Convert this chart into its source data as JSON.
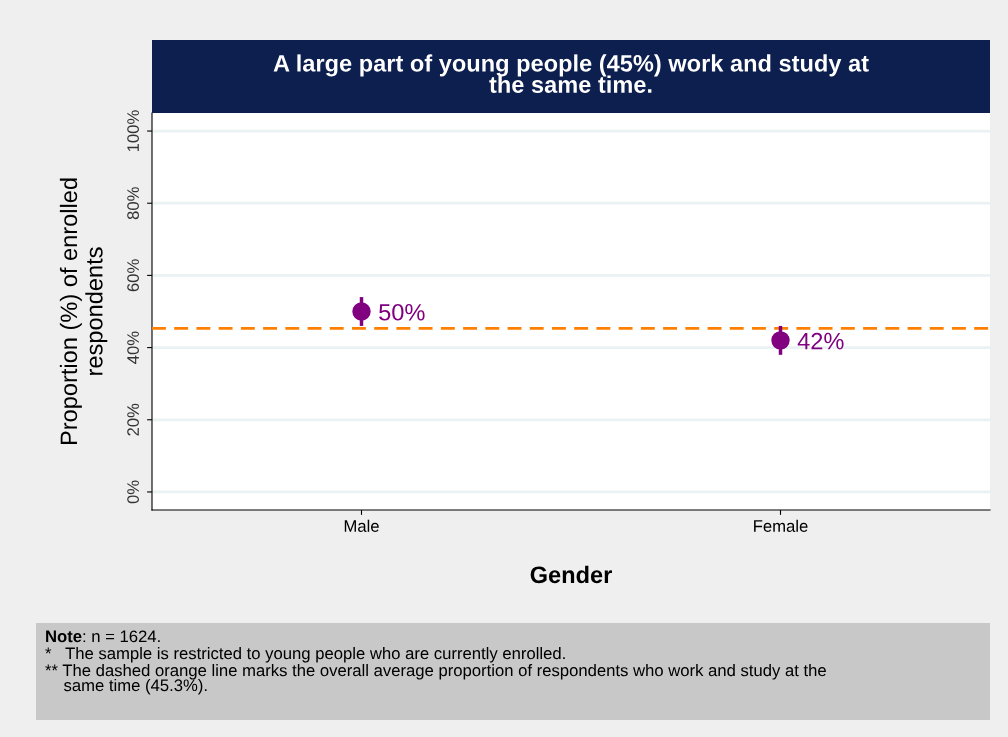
{
  "chart_data": {
    "type": "scatter",
    "title": "A large part of young people (45%) work and study at\nthe same time.",
    "xlabel": "Gender",
    "ylabel": "Proportion (%) of enrolled\nrespondents",
    "categories": [
      "Male",
      "Female"
    ],
    "series": [
      {
        "color": "#800080",
        "values": [
          50,
          42
        ],
        "errors": [
          [
            46,
            54
          ],
          [
            38,
            46
          ]
        ],
        "value_labels": [
          "50%",
          "42%"
        ]
      }
    ],
    "ylim": [
      -5,
      105
    ],
    "yticks": [
      {
        "value": 0,
        "label": "0%"
      },
      {
        "value": 20,
        "label": "20%"
      },
      {
        "value": 40,
        "label": "40%"
      },
      {
        "value": 60,
        "label": "60%"
      },
      {
        "value": 80,
        "label": "80%"
      },
      {
        "value": 100,
        "label": "100%"
      }
    ],
    "grid": "y",
    "marker": "circle",
    "ref_lines": [
      {
        "axis": "y",
        "value": 45.3,
        "color": "#ff8000",
        "line_style": "dashed"
      }
    ],
    "annotations": [
      "Note: n = 1624.",
      "*   The sample is restricted to young people who are currently enrolled.",
      "** The dashed orange line marks the overall average proportion of respondents who work and study at the\n    same time (45.3%)."
    ]
  }
}
